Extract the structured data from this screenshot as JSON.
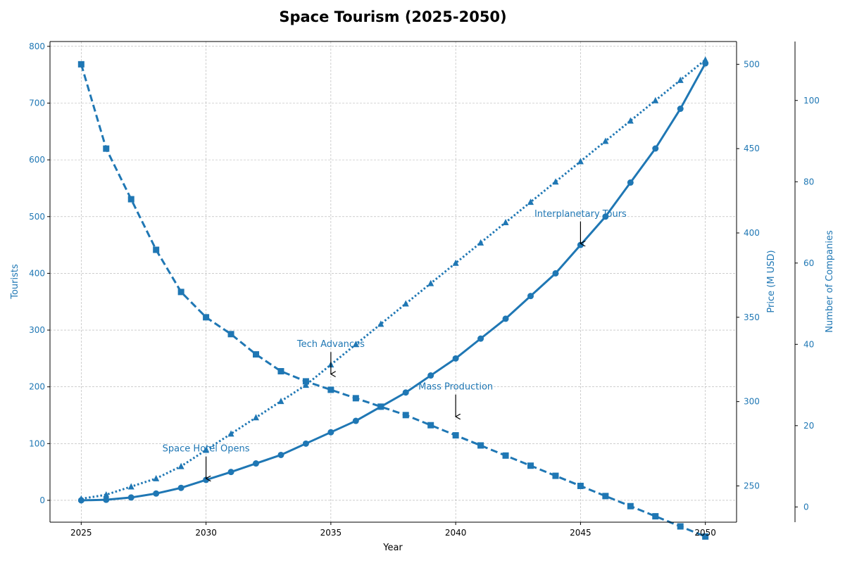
{
  "colors": {
    "series": "#1f77b4",
    "grid": "#b0b0b0",
    "axis": "#000000",
    "annotation_arrow": "#000000"
  },
  "chart_data": {
    "type": "line",
    "title": "Space Tourism (2025-2050)",
    "xlabel": "Year",
    "xlim": [
      2023.75,
      2051.25
    ],
    "xticks": [
      2025,
      2030,
      2035,
      2040,
      2045,
      2050
    ],
    "grid": true,
    "axes": {
      "left": {
        "label": "Tourists",
        "ylim": [
          -38.5,
          808.5
        ],
        "ticks": [
          0,
          100,
          200,
          300,
          400,
          500,
          600,
          700,
          800
        ]
      },
      "right1": {
        "label": "Price (M USD)",
        "ylim": [
          228.5,
          513.5
        ],
        "ticks": [
          250,
          300,
          350,
          400,
          450,
          500
        ]
      },
      "right2": {
        "label": "Number of Companies",
        "ylim": [
          -3.75,
          114.5
        ],
        "ticks": [
          0,
          20,
          40,
          60,
          80,
          100
        ]
      }
    },
    "x": [
      2025,
      2026,
      2027,
      2028,
      2029,
      2030,
      2031,
      2032,
      2033,
      2034,
      2035,
      2036,
      2037,
      2038,
      2039,
      2040,
      2041,
      2042,
      2043,
      2044,
      2045,
      2046,
      2047,
      2048,
      2049,
      2050
    ],
    "series": [
      {
        "axis": "left",
        "style": "solid",
        "marker": "circle",
        "values": [
          0,
          1,
          5,
          12,
          22,
          36,
          50,
          65,
          80,
          100,
          120,
          140,
          165,
          190,
          220,
          250,
          285,
          320,
          360,
          400,
          450,
          500,
          560,
          620,
          690,
          770
        ]
      },
      {
        "axis": "right1",
        "style": "dashed",
        "marker": "square",
        "values": [
          500,
          450,
          420,
          390,
          365,
          350,
          340,
          328,
          318,
          312,
          307,
          302,
          297,
          292,
          286,
          280,
          274,
          268,
          262,
          256,
          250,
          244,
          238,
          232,
          226,
          220
        ]
      },
      {
        "axis": "right2",
        "style": "dotted",
        "marker": "triangle",
        "values": [
          2,
          3,
          5,
          7,
          10,
          14,
          18,
          22,
          26,
          30,
          35,
          40,
          45,
          50,
          55,
          60,
          65,
          70,
          75,
          80,
          85,
          90,
          95,
          100,
          105,
          110
        ]
      }
    ],
    "annotations": [
      {
        "text": "Space Hotel Opens",
        "x": 2030,
        "y": 36
      },
      {
        "text": "Tech Advances",
        "x": 2035,
        "y": 220
      },
      {
        "text": "Mass Production",
        "x": 2040,
        "y": 145
      },
      {
        "text": "Interplanetary Tours",
        "x": 2045,
        "y": 450
      }
    ]
  }
}
